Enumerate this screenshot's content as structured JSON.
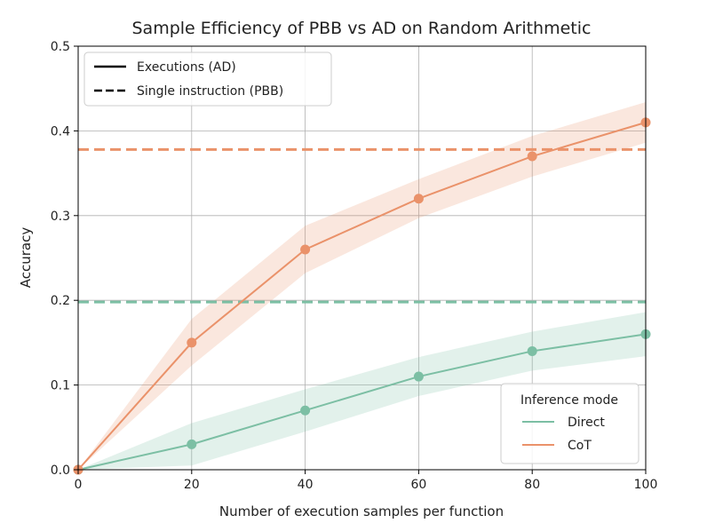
{
  "chart_data": {
    "type": "line",
    "title": "Sample Efficiency of PBB vs AD on Random Arithmetic",
    "xlabel": "Number of execution samples per function",
    "ylabel": "Accuracy",
    "xlim": [
      0,
      100
    ],
    "ylim": [
      0,
      0.5
    ],
    "xticks": [
      0,
      20,
      40,
      60,
      80,
      100
    ],
    "xtick_labels": [
      "0",
      "20",
      "40",
      "60",
      "80",
      "100"
    ],
    "yticks": [
      0,
      0.1,
      0.2,
      0.3,
      0.4,
      0.5
    ],
    "ytick_labels": [
      "0.0",
      "0.1",
      "0.2",
      "0.3",
      "0.4",
      "0.5"
    ],
    "grid": true,
    "x": [
      0,
      20,
      40,
      60,
      80,
      100
    ],
    "series": [
      {
        "name": "Direct",
        "color": "#7cbfa4",
        "values": [
          0.0,
          0.03,
          0.07,
          0.11,
          0.14,
          0.16
        ],
        "lower": [
          0.0,
          0.005,
          0.045,
          0.087,
          0.117,
          0.134
        ],
        "upper": [
          0.0,
          0.055,
          0.095,
          0.133,
          0.163,
          0.186
        ],
        "pbb": 0.198
      },
      {
        "name": "CoT",
        "color": "#ea926a",
        "values": [
          0.0,
          0.15,
          0.26,
          0.32,
          0.37,
          0.41
        ],
        "lower": [
          0.0,
          0.123,
          0.232,
          0.297,
          0.346,
          0.386
        ],
        "upper": [
          0.0,
          0.178,
          0.288,
          0.343,
          0.394,
          0.434
        ],
        "pbb": 0.378
      }
    ],
    "style_legend": {
      "location": "upper-left",
      "entries": [
        {
          "label": "Executions (AD)",
          "style": "solid"
        },
        {
          "label": "Single instruction (PBB)",
          "style": "dashed"
        }
      ]
    },
    "mode_legend": {
      "location": "lower-right",
      "title": "Inference mode",
      "entries": [
        "Direct",
        "CoT"
      ]
    }
  }
}
